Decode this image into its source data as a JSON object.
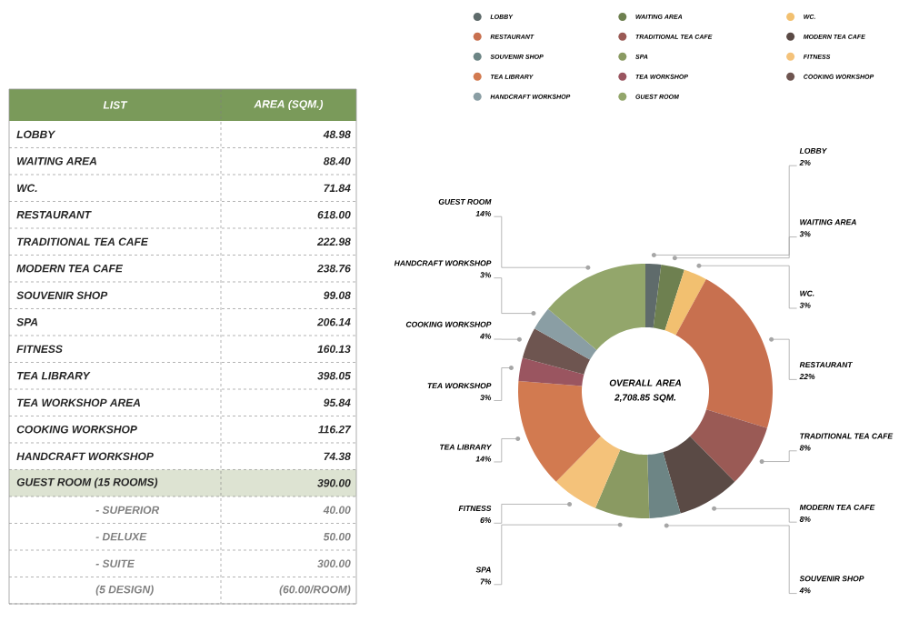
{
  "chart_data": [
    {
      "type": "donut",
      "categories": [
        "LOBBY",
        "WAITING AREA",
        "WC.",
        "RESTAURANT",
        "TRADITIONAL TEA CAFE",
        "MODERN TEA CAFE",
        "SOUVENIR SHOP",
        "SPA",
        "FITNESS",
        "TEA LIBRARY",
        "TEA WORKSHOP",
        "COOKING WORKSHOP",
        "HANDCRAFT WORKSHOP",
        "GUEST ROOM"
      ],
      "values": [
        2,
        3,
        3,
        22,
        8,
        8,
        4,
        7,
        6,
        14,
        3,
        4,
        3,
        14
      ],
      "value_labels": [
        "2%",
        "3%",
        "3%",
        "22%",
        "8%",
        "8%",
        "4%",
        "7%",
        "6%",
        "14%",
        "3%",
        "4%",
        "3%",
        "14%"
      ],
      "colors": [
        "#5f6b6b",
        "#6e8050",
        "#f2c070",
        "#c8704f",
        "#9a5a55",
        "#5a4a45",
        "#6d8585",
        "#8a9a62",
        "#f4c27a",
        "#d27a50",
        "#9a5560",
        "#6e5550",
        "#8a9ea4",
        "#93a66b"
      ],
      "legend": "top",
      "annotations": [
        "OVERALL AREA 2,708.85 SQM."
      ]
    },
    {
      "type": "other",
      "annotations": [
        "LIST",
        "AREA (SQM.)",
        "LOBBY",
        "48.98",
        "WAITING AREA",
        "88.40",
        "WC.",
        "71.84",
        "RESTAURANT",
        "618.00",
        "TRADITIONAL TEA CAFE",
        "222.98",
        "MODERN TEA CAFE",
        "238.76",
        "SOUVENIR SHOP",
        "99.08",
        "SPA",
        "206.14",
        "FITNESS",
        "160.13",
        "TEA LIBRARY",
        "398.05",
        "TEA WORKSHOP AREA",
        "95.84",
        "COOKING WORKSHOP",
        "116.27",
        "HANDCRAFT WORKSHOP",
        "74.38",
        "GUEST ROOM (15 ROOMS)",
        "390.00",
        "- SUPERIOR",
        "40.00",
        "- DELUXE",
        "50.00",
        "- SUITE",
        "300.00",
        "(5 DESIGN)",
        "(60.00/ROOM)"
      ]
    }
  ]
}
